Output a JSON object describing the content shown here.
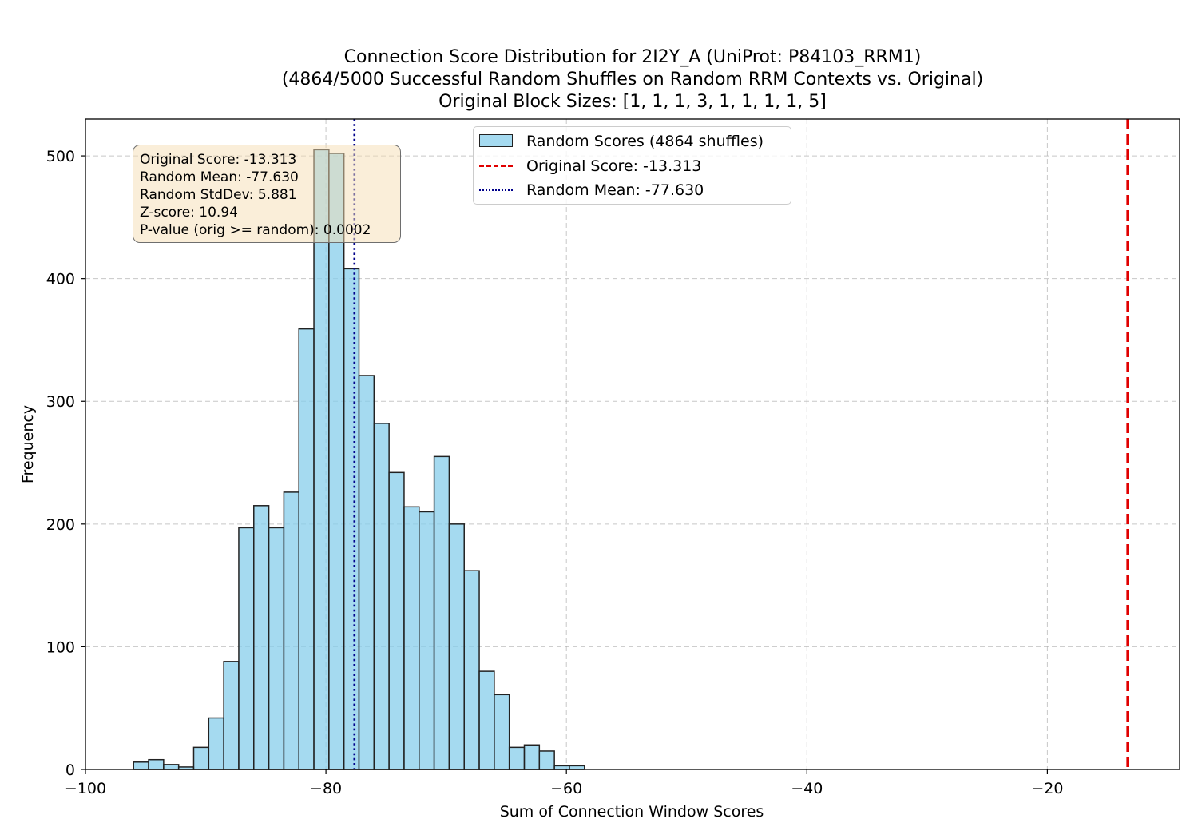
{
  "chart_data": {
    "type": "bar",
    "title": [
      "Connection Score Distribution for 2I2Y_A (UniProt: P84103_RRM1)",
      "(4864/5000 Successful Random Shuffles on Random RRM Contexts vs. Original)",
      "Original Block Sizes: [1, 1, 1, 3, 1, 1, 1, 1, 5]"
    ],
    "xlabel": "Sum of Connection Window Scores",
    "ylabel": "Frequency",
    "xlim": [
      -100,
      -9
    ],
    "ylim": [
      0,
      530
    ],
    "xticks": [
      -100,
      -80,
      -60,
      -40,
      -20
    ],
    "xtick_labels": [
      "−100",
      "−80",
      "−60",
      "−40",
      "−20"
    ],
    "yticks": [
      0,
      100,
      200,
      300,
      400,
      500
    ],
    "grid": true,
    "legend_position": "top-center",
    "bin_width": 1.25,
    "bins": [
      {
        "x0": -96.0,
        "count": 6
      },
      {
        "x0": -94.75,
        "count": 8
      },
      {
        "x0": -93.5,
        "count": 4
      },
      {
        "x0": -92.25,
        "count": 2
      },
      {
        "x0": -91.0,
        "count": 18
      },
      {
        "x0": -89.75,
        "count": 42
      },
      {
        "x0": -88.5,
        "count": 88
      },
      {
        "x0": -87.25,
        "count": 197
      },
      {
        "x0": -86.0,
        "count": 215
      },
      {
        "x0": -84.75,
        "count": 197
      },
      {
        "x0": -83.5,
        "count": 226
      },
      {
        "x0": -82.25,
        "count": 359
      },
      {
        "x0": -81.0,
        "count": 505
      },
      {
        "x0": -79.75,
        "count": 502
      },
      {
        "x0": -78.5,
        "count": 408
      },
      {
        "x0": -77.25,
        "count": 321
      },
      {
        "x0": -76.0,
        "count": 282
      },
      {
        "x0": -74.75,
        "count": 242
      },
      {
        "x0": -73.5,
        "count": 214
      },
      {
        "x0": -72.25,
        "count": 210
      },
      {
        "x0": -71.0,
        "count": 255
      },
      {
        "x0": -69.75,
        "count": 200
      },
      {
        "x0": -68.5,
        "count": 162
      },
      {
        "x0": -67.25,
        "count": 80
      },
      {
        "x0": -66.0,
        "count": 61
      },
      {
        "x0": -64.75,
        "count": 18
      },
      {
        "x0": -63.5,
        "count": 20
      },
      {
        "x0": -62.25,
        "count": 15
      },
      {
        "x0": -61.0,
        "count": 3
      },
      {
        "x0": -59.75,
        "count": 3
      }
    ],
    "original_score": -13.313,
    "random_mean": -77.63,
    "colors": {
      "bar_fill": "#87ceeb",
      "bar_edge": "#222222",
      "original_line": "#e00000",
      "mean_line": "#00008b",
      "grid": "#b0b0b0"
    },
    "legend": {
      "random_scores": "Random Scores (4864 shuffles)",
      "original_score": "Original Score: -13.313",
      "random_mean": "Random Mean: -77.630"
    },
    "stats_box": [
      "Original Score: -13.313",
      "Random Mean: -77.630",
      "Random StdDev: 5.881",
      "Z-score: 10.94",
      "P-value (orig >= random): 0.0002"
    ]
  }
}
